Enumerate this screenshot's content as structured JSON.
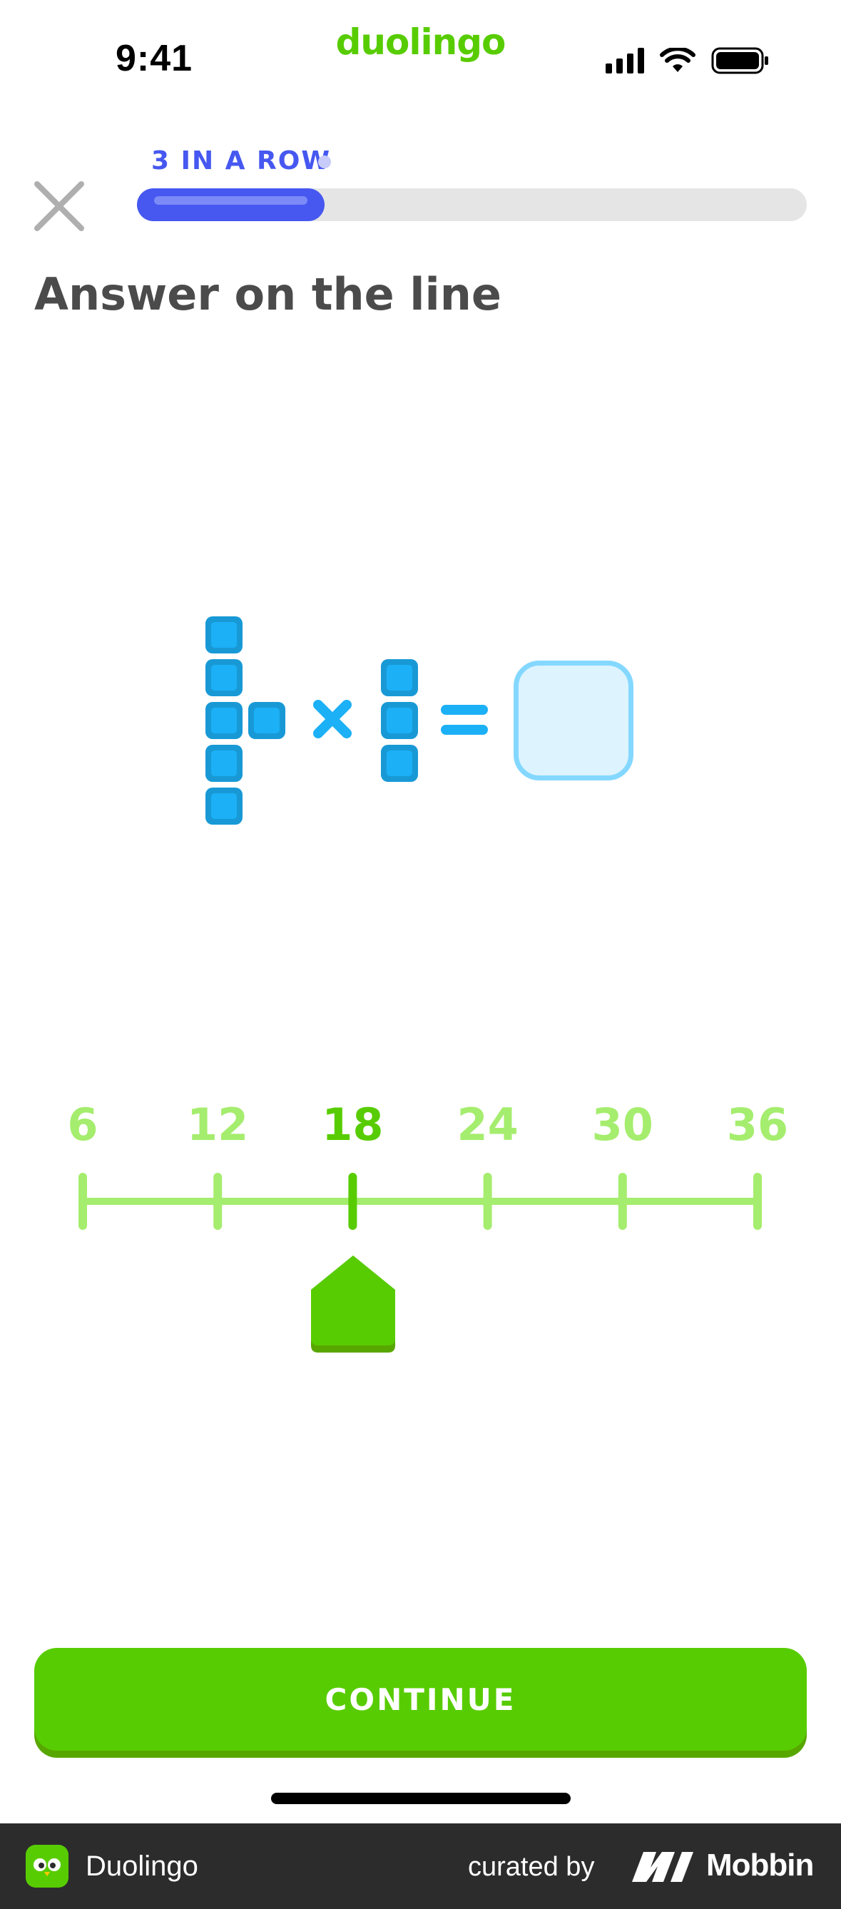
{
  "status_bar": {
    "time": "9:41",
    "brand": "duolingo"
  },
  "lesson": {
    "streak_label": "3 IN A ROW",
    "progress": 0.28,
    "prompt": "Answer on the line"
  },
  "equation": {
    "left_operand_blocks": {
      "column": 5,
      "extra": 1
    },
    "operator": "×",
    "right_operand_blocks": 3,
    "equals": "=",
    "answer": ""
  },
  "number_line": {
    "ticks": [
      "6",
      "12",
      "18",
      "24",
      "30",
      "36"
    ],
    "selected_value": "18"
  },
  "actions": {
    "continue_label": "CONTINUE"
  },
  "footer": {
    "app_name": "Duolingo",
    "curated_by": "curated by",
    "brand": "Mobbin"
  },
  "colors": {
    "accent_blue": "#4658f0",
    "green": "#58cc02",
    "light_green": "#a5ed6e",
    "block_blue": "#1cb0f6"
  }
}
